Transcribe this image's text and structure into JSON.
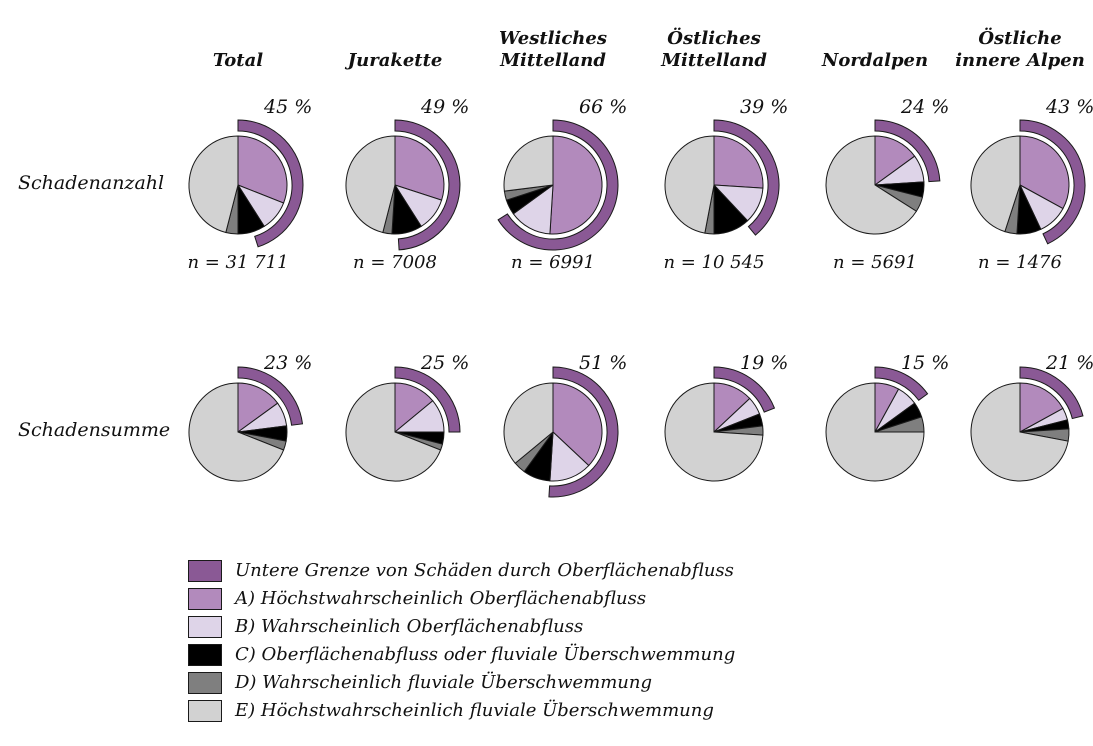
{
  "figure": {
    "row_labels": [
      "Schadenanzahl",
      "Schadensumme"
    ],
    "columns": [
      {
        "lines": [
          "Total"
        ]
      },
      {
        "lines": [
          "Jurakette"
        ]
      },
      {
        "lines": [
          "Westliches",
          "Mittelland"
        ]
      },
      {
        "lines": [
          "Östliches",
          "Mittelland"
        ]
      },
      {
        "lines": [
          "Nordalpen"
        ]
      },
      {
        "lines": [
          "Östliche",
          "innere Alpen"
        ]
      }
    ]
  },
  "chart_data": {
    "type": "pie",
    "slice_order": [
      "A",
      "B",
      "C",
      "D",
      "E"
    ],
    "colors": {
      "arc": "#8a5995",
      "A": "#b28abc",
      "B": "#ded4e8",
      "C": "#000000",
      "D": "#7f7f7f",
      "E": "#d2d2d2",
      "outline": "#1a1a1a"
    },
    "legend": [
      {
        "key": "arc",
        "label": "Untere Grenze von Schäden durch Oberflächenabfluss"
      },
      {
        "key": "A",
        "label": "A) Höchstwahrscheinlich Oberflächenabfluss"
      },
      {
        "key": "B",
        "label": "B) Wahrscheinlich Oberflächenabfluss"
      },
      {
        "key": "C",
        "label": "C) Oberflächenabfluss oder fluviale Überschwemmung"
      },
      {
        "key": "D",
        "label": "D) Wahrscheinlich fluviale Überschwemmung"
      },
      {
        "key": "E",
        "label": "E) Höchstwahrscheinlich fluviale Überschwemmung"
      }
    ],
    "series": [
      {
        "name": "Schadenanzahl",
        "pies": [
          {
            "region": "Total",
            "outer_arc_pct": 45,
            "pct_label": "45 %",
            "n": 31711,
            "n_label": "n = 31 711",
            "slices": {
              "A": 31,
              "B": 10,
              "C": 9,
              "D": 4,
              "E": 46
            }
          },
          {
            "region": "Jurakette",
            "outer_arc_pct": 49,
            "pct_label": "49 %",
            "n": 7008,
            "n_label": "n = 7008",
            "slices": {
              "A": 30,
              "B": 11,
              "C": 10,
              "D": 3,
              "E": 46
            }
          },
          {
            "region": "Westliches Mittelland",
            "outer_arc_pct": 66,
            "pct_label": "66 %",
            "n": 6991,
            "n_label": "n = 6991",
            "slices": {
              "A": 51,
              "B": 14,
              "C": 5,
              "D": 3,
              "E": 27
            }
          },
          {
            "region": "Östliches Mittelland",
            "outer_arc_pct": 39,
            "pct_label": "39 %",
            "n": 10545,
            "n_label": "n = 10 545",
            "slices": {
              "A": 26,
              "B": 12,
              "C": 12,
              "D": 3,
              "E": 47
            }
          },
          {
            "region": "Nordalpen",
            "outer_arc_pct": 24,
            "pct_label": "24 %",
            "n": 5691,
            "n_label": "n = 5691",
            "slices": {
              "A": 15,
              "B": 9,
              "C": 5,
              "D": 5,
              "E": 66
            }
          },
          {
            "region": "Östliche innere Alpen",
            "outer_arc_pct": 43,
            "pct_label": "43 %",
            "n": 1476,
            "n_label": "n = 1476",
            "slices": {
              "A": 33,
              "B": 10,
              "C": 8,
              "D": 4,
              "E": 45
            }
          }
        ]
      },
      {
        "name": "Schadensumme",
        "pies": [
          {
            "region": "Total",
            "outer_arc_pct": 23,
            "pct_label": "23 %",
            "slices": {
              "A": 15,
              "B": 8,
              "C": 5,
              "D": 3,
              "E": 69
            }
          },
          {
            "region": "Jurakette",
            "outer_arc_pct": 25,
            "pct_label": "25 %",
            "slices": {
              "A": 14,
              "B": 11,
              "C": 4,
              "D": 2,
              "E": 69
            }
          },
          {
            "region": "Westliches Mittelland",
            "outer_arc_pct": 51,
            "pct_label": "51 %",
            "slices": {
              "A": 37,
              "B": 14,
              "C": 9,
              "D": 4,
              "E": 36
            }
          },
          {
            "region": "Östliches Mittelland",
            "outer_arc_pct": 19,
            "pct_label": "19 %",
            "slices": {
              "A": 13,
              "B": 6,
              "C": 4,
              "D": 3,
              "E": 74
            }
          },
          {
            "region": "Nordalpen",
            "outer_arc_pct": 15,
            "pct_label": "15 %",
            "slices": {
              "A": 8,
              "B": 7,
              "C": 5,
              "D": 5,
              "E": 75
            }
          },
          {
            "region": "Östliche innere Alpen",
            "outer_arc_pct": 21,
            "pct_label": "21 %",
            "slices": {
              "A": 17,
              "B": 4,
              "C": 3,
              "D": 4,
              "E": 72
            }
          }
        ]
      }
    ]
  }
}
